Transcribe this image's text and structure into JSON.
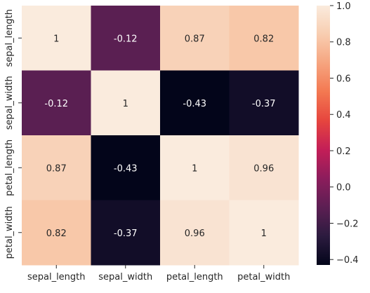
{
  "chart_data": {
    "type": "heatmap",
    "title": "",
    "x_labels": [
      "sepal_length",
      "sepal_width",
      "petal_length",
      "petal_width"
    ],
    "y_labels": [
      "sepal_length",
      "sepal_width",
      "petal_length",
      "petal_width"
    ],
    "values": [
      [
        1.0,
        -0.12,
        0.87,
        0.82
      ],
      [
        -0.12,
        1.0,
        -0.43,
        -0.37
      ],
      [
        0.87,
        -0.43,
        1.0,
        0.96
      ],
      [
        0.82,
        -0.37,
        0.96,
        1.0
      ]
    ],
    "annotations": [
      [
        "1",
        "-0.12",
        "0.87",
        "0.82"
      ],
      [
        "-0.12",
        "1",
        "-0.43",
        "-0.37"
      ],
      [
        "0.87",
        "-0.43",
        "1",
        "0.96"
      ],
      [
        "0.82",
        "-0.37",
        "0.96",
        "1"
      ]
    ],
    "colorbar": {
      "min": -0.43,
      "max": 1.0,
      "ticks": [
        1.0,
        0.8,
        0.6,
        0.4,
        0.2,
        0.0,
        -0.2,
        -0.4
      ],
      "tick_labels": [
        "1.0",
        "0.8",
        "0.6",
        "0.4",
        "0.2",
        "0.0",
        "−0.2",
        "−0.4"
      ]
    },
    "colormap": "rocket",
    "colormap_stops": [
      "#03051a",
      "#2c1b3f",
      "#5c1f53",
      "#8c1d5c",
      "#c31e57",
      "#e6453e",
      "#f37851",
      "#f6a47f",
      "#f8cdb0",
      "#faebdd"
    ],
    "grid": false,
    "legend": "colorbar-right"
  }
}
